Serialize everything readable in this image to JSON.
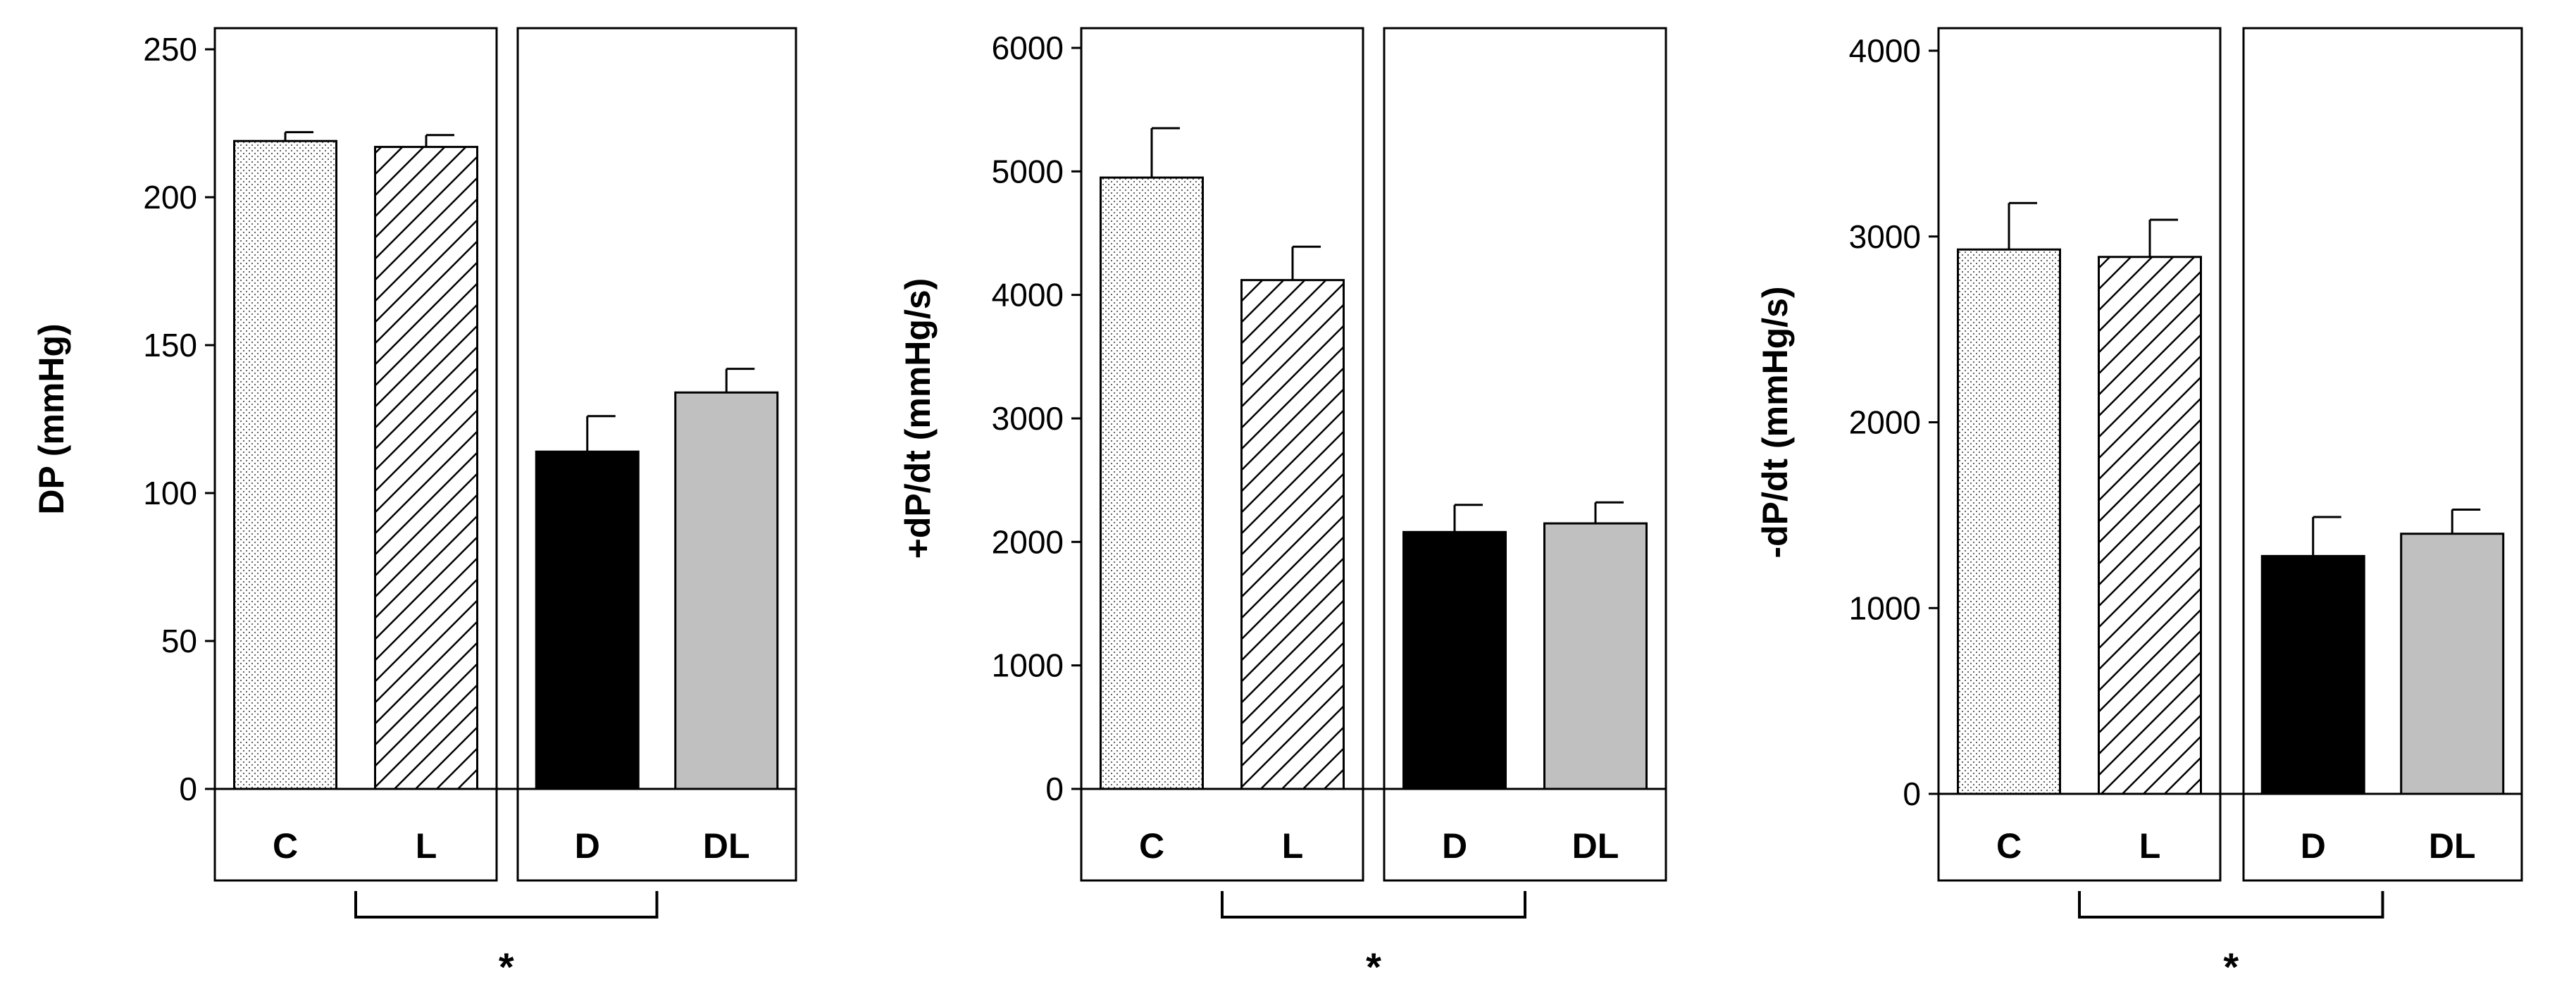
{
  "chart_data": [
    {
      "type": "bar",
      "ylabel": "DP (mmHg)",
      "ylim": [
        0,
        250
      ],
      "yticks": [
        0,
        50,
        100,
        150,
        200,
        250
      ],
      "groups": [
        [
          "C",
          "L"
        ],
        [
          "D",
          "DL"
        ]
      ],
      "categories": [
        "C",
        "L",
        "D",
        "DL"
      ],
      "values": [
        219,
        217,
        114,
        134
      ],
      "errors": [
        3,
        4,
        12,
        8
      ],
      "significance": "*"
    },
    {
      "type": "bar",
      "ylabel": "+dP/dt (mmHg/s)",
      "ylim": [
        0,
        6000
      ],
      "yticks": [
        0,
        1000,
        2000,
        3000,
        4000,
        5000,
        6000
      ],
      "groups": [
        [
          "C",
          "L"
        ],
        [
          "D",
          "DL"
        ]
      ],
      "categories": [
        "C",
        "L",
        "D",
        "DL"
      ],
      "values": [
        4950,
        4120,
        2080,
        2150
      ],
      "errors": [
        400,
        270,
        220,
        170
      ],
      "significance": "*"
    },
    {
      "type": "bar",
      "ylabel": "-dP/dt (mmHg/s)",
      "ylim": [
        0,
        4000
      ],
      "yticks": [
        0,
        1000,
        2000,
        3000,
        4000
      ],
      "groups": [
        [
          "C",
          "L"
        ],
        [
          "D",
          "DL"
        ]
      ],
      "categories": [
        "C",
        "L",
        "D",
        "DL"
      ],
      "values": [
        2930,
        2890,
        1280,
        1400
      ],
      "errors": [
        250,
        200,
        210,
        130
      ],
      "significance": "*"
    }
  ],
  "bar_styles": [
    "dots",
    "hatch",
    "black",
    "gray"
  ],
  "colors": {
    "black": "#000000",
    "gray": "#c0c0c0",
    "axis": "#000000",
    "background": "#ffffff"
  }
}
